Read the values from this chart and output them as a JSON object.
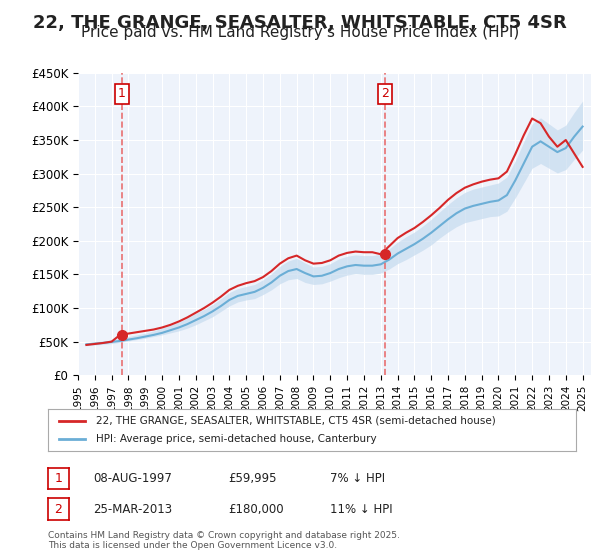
{
  "title": "22, THE GRANGE, SEASALTER, WHITSTABLE, CT5 4SR",
  "subtitle": "Price paid vs. HM Land Registry's House Price Index (HPI)",
  "title_fontsize": 13,
  "subtitle_fontsize": 11,
  "background_color": "#ffffff",
  "plot_bg_color": "#eef3fb",
  "grid_color": "#ffffff",
  "ylim": [
    0,
    450000
  ],
  "yticks": [
    0,
    50000,
    100000,
    150000,
    200000,
    250000,
    300000,
    350000,
    400000,
    450000
  ],
  "ytick_labels": [
    "£0",
    "£50K",
    "£100K",
    "£150K",
    "£200K",
    "£250K",
    "£300K",
    "£350K",
    "£400K",
    "£450K"
  ],
  "xlim_start": 1995.0,
  "xlim_end": 2025.5,
  "xtick_years": [
    1995,
    1996,
    1997,
    1998,
    1999,
    2000,
    2001,
    2002,
    2003,
    2004,
    2005,
    2006,
    2007,
    2008,
    2009,
    2010,
    2011,
    2012,
    2013,
    2014,
    2015,
    2016,
    2017,
    2018,
    2019,
    2020,
    2021,
    2022,
    2023,
    2024,
    2025
  ],
  "sale1_x": 1997.6,
  "sale1_y": 59995,
  "sale1_label": "1",
  "sale2_x": 2013.23,
  "sale2_y": 180000,
  "sale2_label": "2",
  "hpi_line_color": "#6baed6",
  "hpi_fill_color": "#c6dbef",
  "price_line_color": "#d62728",
  "dashed_line_color": "#e87070",
  "marker_color": "#d62728",
  "legend_line1": "22, THE GRANGE, SEASALTER, WHITSTABLE, CT5 4SR (semi-detached house)",
  "legend_line2": "HPI: Average price, semi-detached house, Canterbury",
  "table_row1": [
    "1",
    "08-AUG-1997",
    "£59,995",
    "7% ↓ HPI"
  ],
  "table_row2": [
    "2",
    "25-MAR-2013",
    "£180,000",
    "11% ↓ HPI"
  ],
  "footer": "Contains HM Land Registry data © Crown copyright and database right 2025.\nThis data is licensed under the Open Government Licence v3.0.",
  "hpi_years": [
    1995.5,
    1996.0,
    1996.5,
    1997.0,
    1997.5,
    1998.0,
    1998.5,
    1999.0,
    1999.5,
    2000.0,
    2000.5,
    2001.0,
    2001.5,
    2002.0,
    2002.5,
    2003.0,
    2003.5,
    2004.0,
    2004.5,
    2005.0,
    2005.5,
    2006.0,
    2006.5,
    2007.0,
    2007.5,
    2008.0,
    2008.5,
    2009.0,
    2009.5,
    2010.0,
    2010.5,
    2011.0,
    2011.5,
    2012.0,
    2012.5,
    2013.0,
    2013.5,
    2014.0,
    2014.5,
    2015.0,
    2015.5,
    2016.0,
    2016.5,
    2017.0,
    2017.5,
    2018.0,
    2018.5,
    2019.0,
    2019.5,
    2020.0,
    2020.5,
    2021.0,
    2021.5,
    2022.0,
    2022.5,
    2023.0,
    2023.5,
    2024.0,
    2024.5,
    2025.0
  ],
  "hpi_values": [
    46000,
    47000,
    48000,
    49500,
    51000,
    53000,
    55000,
    57500,
    60000,
    63000,
    67000,
    71000,
    76000,
    82000,
    88000,
    95000,
    103000,
    112000,
    118000,
    121000,
    124000,
    130000,
    138000,
    148000,
    155000,
    158000,
    152000,
    147000,
    148000,
    152000,
    158000,
    162000,
    164000,
    163000,
    163000,
    165000,
    172000,
    181000,
    188000,
    195000,
    203000,
    212000,
    222000,
    232000,
    241000,
    248000,
    252000,
    255000,
    258000,
    260000,
    268000,
    290000,
    315000,
    340000,
    348000,
    340000,
    332000,
    338000,
    355000,
    370000
  ],
  "hpi_upper": [
    48000,
    49500,
    51000,
    52500,
    55000,
    57500,
    60000,
    62500,
    66000,
    70000,
    74500,
    79000,
    85000,
    92000,
    98000,
    105000,
    114000,
    123000,
    129000,
    132000,
    135000,
    142000,
    151000,
    162000,
    170000,
    174000,
    167000,
    161000,
    162000,
    166000,
    173000,
    177000,
    179000,
    178000,
    178000,
    180000,
    188000,
    198000,
    206000,
    213000,
    222000,
    232000,
    243000,
    254000,
    264000,
    272000,
    277000,
    280000,
    283000,
    286000,
    295000,
    319000,
    347000,
    374000,
    383000,
    374000,
    365000,
    372000,
    391000,
    408000
  ],
  "hpi_lower": [
    44000,
    45000,
    46000,
    47000,
    49000,
    51000,
    53000,
    55000,
    57500,
    60000,
    63000,
    66000,
    70000,
    75000,
    81000,
    87000,
    95000,
    103000,
    109000,
    112000,
    114000,
    120000,
    127000,
    136000,
    142000,
    144000,
    138000,
    135000,
    136000,
    140000,
    145000,
    149000,
    151000,
    150000,
    150000,
    152000,
    158000,
    166000,
    172000,
    179000,
    186000,
    194000,
    204000,
    213000,
    221000,
    227000,
    230000,
    233000,
    236000,
    237000,
    244000,
    264000,
    286000,
    308000,
    315000,
    308000,
    301000,
    306000,
    321000,
    335000
  ],
  "price_years": [
    1995.5,
    1996.0,
    1996.5,
    1997.0,
    1997.5,
    1998.0,
    1998.5,
    1999.0,
    1999.5,
    2000.0,
    2000.5,
    2001.0,
    2001.5,
    2002.0,
    2002.5,
    2003.0,
    2003.5,
    2004.0,
    2004.5,
    2005.0,
    2005.5,
    2006.0,
    2006.5,
    2007.0,
    2007.5,
    2008.0,
    2008.5,
    2009.0,
    2009.5,
    2010.0,
    2010.5,
    2011.0,
    2011.5,
    2012.0,
    2012.5,
    2013.0,
    2013.5,
    2014.0,
    2014.5,
    2015.0,
    2015.5,
    2016.0,
    2016.5,
    2017.0,
    2017.5,
    2018.0,
    2018.5,
    2019.0,
    2019.5,
    2020.0,
    2020.5,
    2021.0,
    2021.5,
    2022.0,
    2022.5,
    2023.0,
    2023.5,
    2024.0,
    2024.5,
    2025.0
  ],
  "price_values": [
    45000,
    46500,
    48000,
    50000,
    59995,
    62000,
    64000,
    66000,
    68000,
    71000,
    75000,
    80000,
    86000,
    93000,
    100000,
    108000,
    117000,
    127000,
    133000,
    137000,
    140000,
    146000,
    155000,
    166000,
    174000,
    178000,
    171000,
    166000,
    167000,
    171000,
    178000,
    182000,
    184000,
    183000,
    183000,
    180000,
    192000,
    204000,
    212000,
    219000,
    228000,
    238000,
    249000,
    261000,
    271000,
    279000,
    284000,
    288000,
    291000,
    293000,
    303000,
    329000,
    357000,
    382000,
    375000,
    355000,
    340000,
    350000,
    330000,
    310000
  ]
}
